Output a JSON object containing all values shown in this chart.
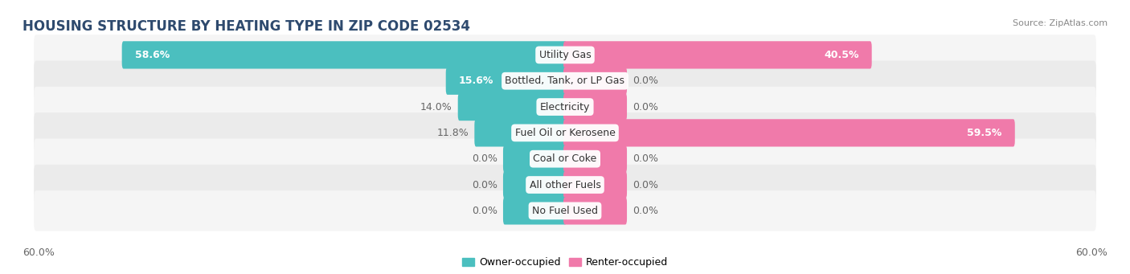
{
  "title": "HOUSING STRUCTURE BY HEATING TYPE IN ZIP CODE 02534",
  "source": "Source: ZipAtlas.com",
  "categories": [
    "Utility Gas",
    "Bottled, Tank, or LP Gas",
    "Electricity",
    "Fuel Oil or Kerosene",
    "Coal or Coke",
    "All other Fuels",
    "No Fuel Used"
  ],
  "owner_values": [
    58.6,
    15.6,
    14.0,
    11.8,
    0.0,
    0.0,
    0.0
  ],
  "renter_values": [
    40.5,
    0.0,
    0.0,
    59.5,
    0.0,
    0.0,
    0.0
  ],
  "owner_color": "#4bbfbf",
  "renter_color": "#f07aaa",
  "row_bg_light": "#f5f5f5",
  "row_bg_dark": "#ebebeb",
  "max_value": 60.0,
  "title_fontsize": 12,
  "label_fontsize": 9,
  "value_fontsize": 9,
  "tick_fontsize": 9,
  "background_color": "#ffffff",
  "stub_value": 8.0,
  "title_color": "#2e4a6e",
  "source_color": "#888888",
  "value_color_inside": "#ffffff",
  "value_color_outside": "#666666",
  "cat_label_color": "#333333"
}
